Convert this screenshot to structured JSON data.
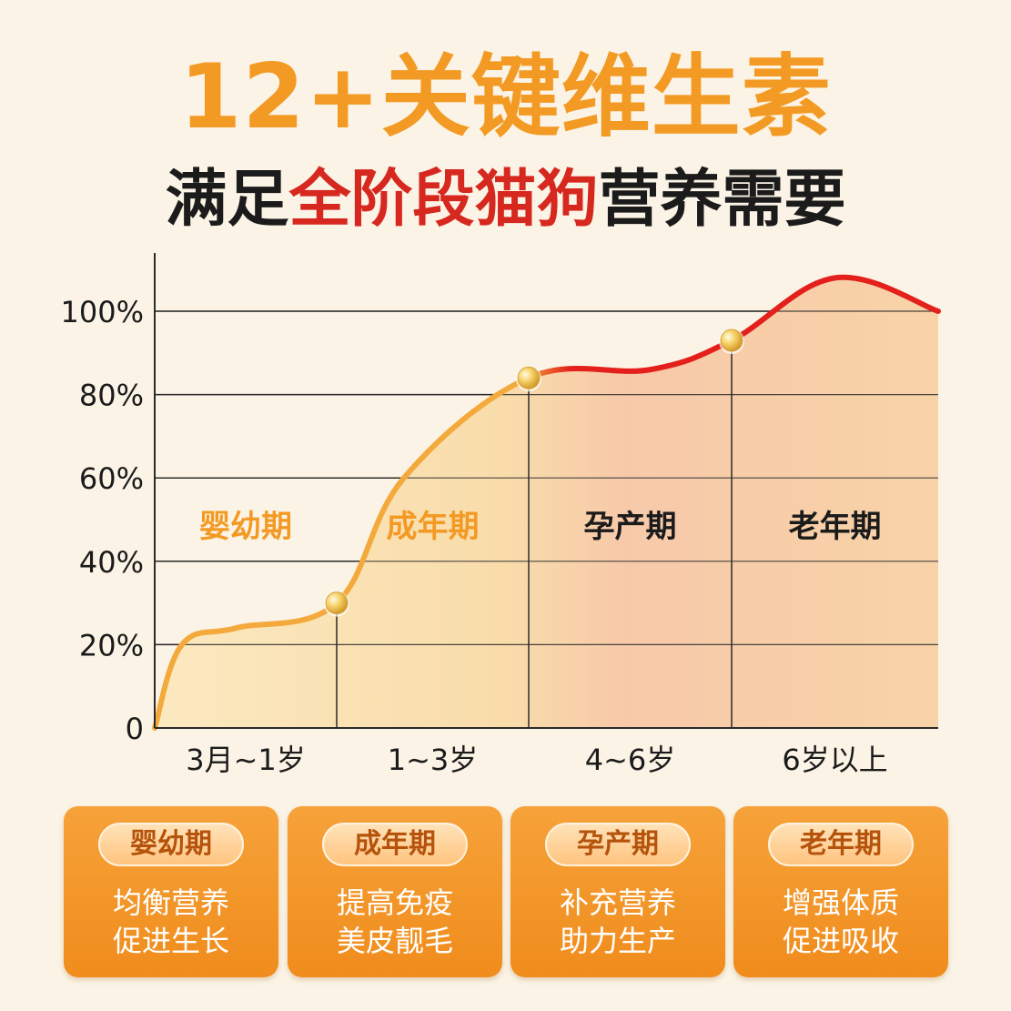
{
  "header": {
    "title": "12+关键维生素",
    "subtitle_pre": "满足",
    "subtitle_red": "全阶段猫狗",
    "subtitle_post": "营养需要"
  },
  "colors": {
    "orange": "#f39a24",
    "red": "#e3201b",
    "dark": "#1b1b1b",
    "bg": "#fbf4e6"
  },
  "chart_data": {
    "type": "area",
    "y_ticks": [
      "0",
      "20%",
      "40%",
      "60%",
      "80%",
      "100%"
    ],
    "ylim": [
      0,
      100
    ],
    "categories": [
      "3月~1岁",
      "1~3岁",
      "4~6岁",
      "6岁以上"
    ],
    "stage_labels": [
      "婴幼期",
      "成年期",
      "孕产期",
      "老年期"
    ],
    "curve": {
      "x": [
        0,
        0.15,
        0.45,
        1.0,
        1.35,
        2.0,
        2.6,
        3.0,
        3.5,
        4.0
      ],
      "y": [
        0,
        20,
        24,
        30,
        60,
        84,
        86,
        93,
        108,
        100
      ]
    },
    "markers": [
      {
        "x": 1.0,
        "y": 30
      },
      {
        "x": 2.0,
        "y": 84
      },
      {
        "x": 3.0,
        "y": 93
      }
    ],
    "grid": true
  },
  "cards": [
    {
      "label": "婴幼期",
      "line1": "均衡营养",
      "line2": "促进生长"
    },
    {
      "label": "成年期",
      "line1": "提高免疫",
      "line2": "美皮靓毛"
    },
    {
      "label": "孕产期",
      "line1": "补充营养",
      "line2": "助力生产"
    },
    {
      "label": "老年期",
      "line1": "增强体质",
      "line2": "促进吸收"
    }
  ]
}
